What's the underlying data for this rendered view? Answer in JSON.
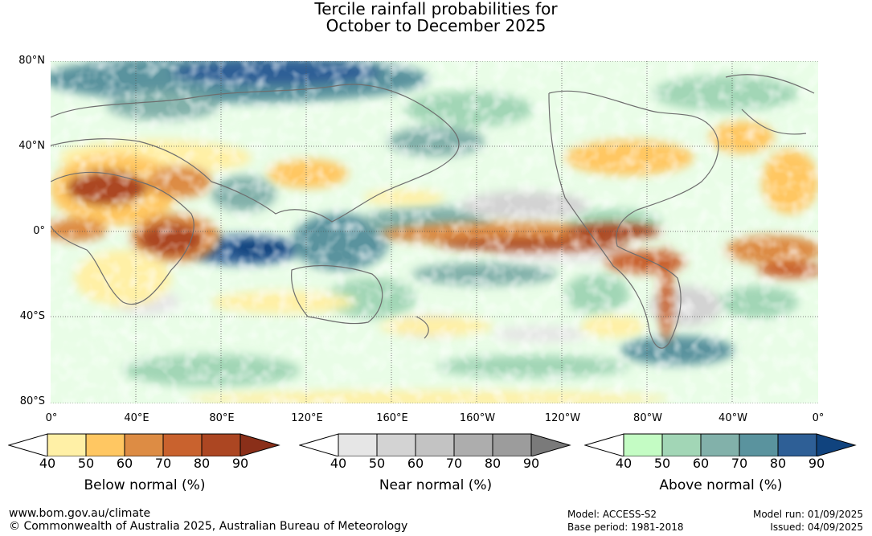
{
  "title_line1": "Tercile rainfall probabilities for",
  "title_line2": "October to December 2025",
  "map": {
    "lat_labels": [
      "80°N",
      "40°N",
      "0°",
      "40°S",
      "80°S"
    ],
    "lon_labels": [
      "0°",
      "40°E",
      "80°E",
      "120°E",
      "160°E",
      "160°W",
      "120°W",
      "80°W",
      "40°W",
      "0°"
    ],
    "colors": {
      "ocean_background": "#ffffff",
      "coastline": "#6e6e6e",
      "gridline": "#555555"
    }
  },
  "legends": [
    {
      "caption": "Below normal (%)",
      "ticks": [
        "40",
        "50",
        "60",
        "70",
        "80",
        "90"
      ],
      "colors": [
        "#fff0a6",
        "#ffc762",
        "#dd8c44",
        "#c9622e",
        "#ac4622",
        "#8a2f19"
      ]
    },
    {
      "caption": "Near normal (%)",
      "ticks": [
        "40",
        "50",
        "60",
        "70",
        "80",
        "90"
      ],
      "colors": [
        "#e6e6e6",
        "#d3d3d3",
        "#c3c3c3",
        "#adadad",
        "#9c9c9c",
        "#7a7a7a"
      ]
    },
    {
      "caption": "Above normal (%)",
      "ticks": [
        "40",
        "50",
        "60",
        "70",
        "80",
        "90"
      ],
      "colors": [
        "#c4fcc4",
        "#a2d6b6",
        "#82b1aa",
        "#5a939e",
        "#2e5f96",
        "#10437e"
      ]
    }
  ],
  "footer": {
    "website": "www.bom.gov.au/climate",
    "copyright": "© Commonwealth of Australia 2025, Australian Bureau of Meteorology",
    "model": "Model: ACCESS-S2",
    "base_period": "Base period: 1981-2018",
    "model_run": "Model run: 01/09/2025",
    "issued": "Issued: 04/09/2025"
  }
}
